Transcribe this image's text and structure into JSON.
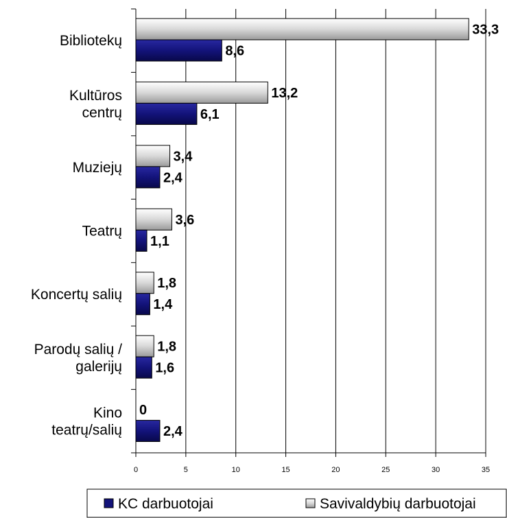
{
  "chart_data": {
    "type": "bar",
    "orientation": "horizontal",
    "categories": [
      [
        "Bibliotekų"
      ],
      [
        "Kultūros",
        "centrų"
      ],
      [
        "Muziejų"
      ],
      [
        "Teatrų"
      ],
      [
        "Koncertų salių"
      ],
      [
        "Parodų salių /",
        "galerijų"
      ],
      [
        "Kino",
        "teatrų/salių"
      ]
    ],
    "series": [
      {
        "name": "Savivaldybių darbuotojai",
        "values": [
          33.3,
          13.2,
          3.4,
          3.6,
          1.8,
          1.8,
          0
        ],
        "labels": [
          "33,3",
          "13,2",
          "3,4",
          "3,6",
          "1,8",
          "1,8",
          "0"
        ],
        "color": "#e4e4e4"
      },
      {
        "name": "KC darbuotojai",
        "values": [
          8.6,
          6.1,
          2.4,
          1.1,
          1.4,
          1.6,
          2.4
        ],
        "labels": [
          "8,6",
          "6,1",
          "2,4",
          "1,1",
          "1,4",
          "1,6",
          "2,4"
        ],
        "color": "#13137a"
      }
    ],
    "xlim": [
      0,
      35
    ],
    "xticks": [
      "0",
      "5",
      "10",
      "15",
      "20",
      "25",
      "30",
      "35"
    ],
    "grid": true,
    "legend_position": "bottom",
    "legend_order": [
      "KC darbuotojai",
      "Savivaldybių darbuotojai"
    ]
  }
}
